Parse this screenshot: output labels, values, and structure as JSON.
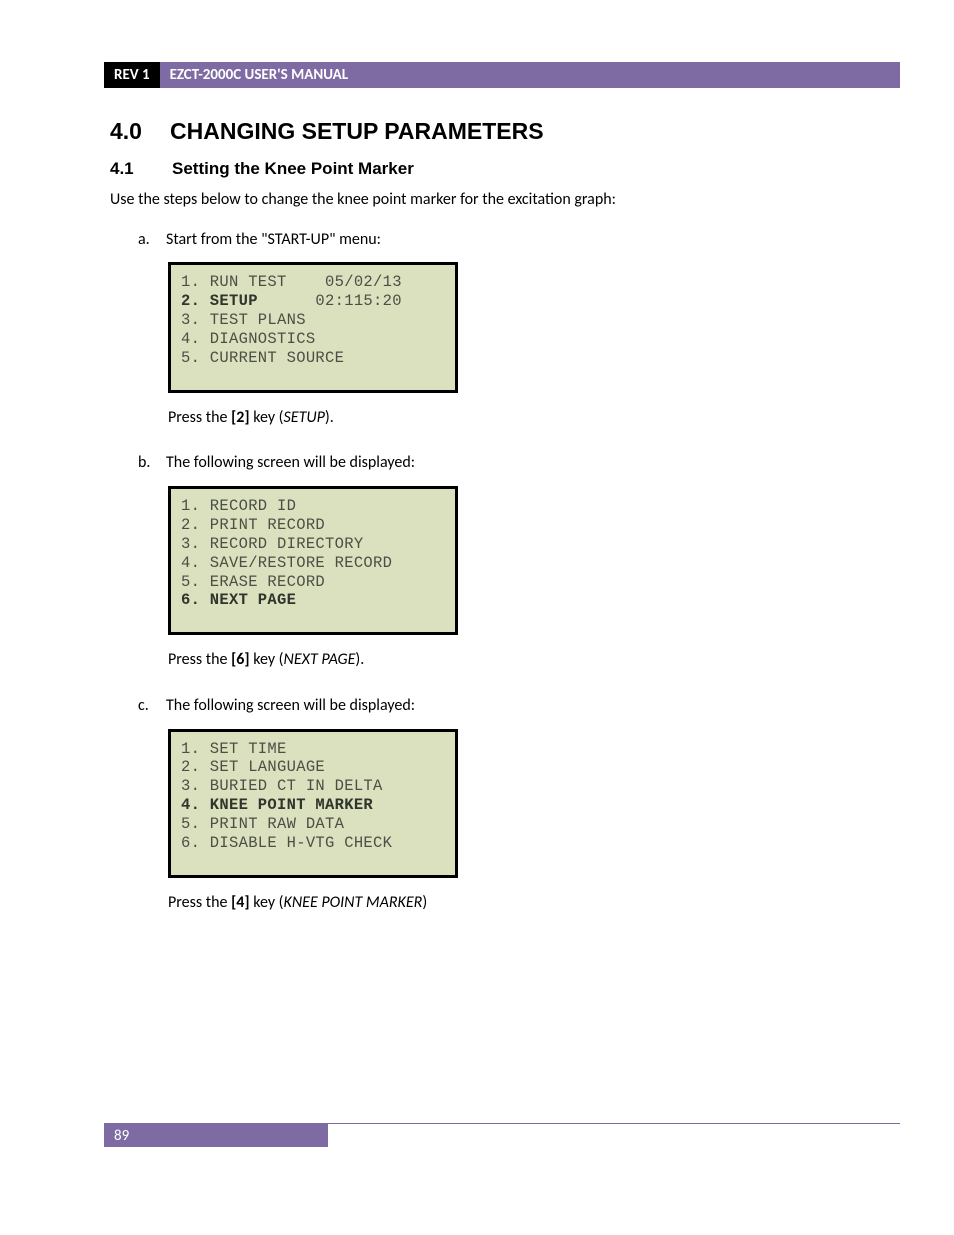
{
  "header": {
    "rev": "REV 1",
    "title": "EZCT-2000C USER'S MANUAL"
  },
  "section": {
    "number": "4.0",
    "title": "CHANGING SETUP PARAMETERS"
  },
  "subsection": {
    "number": "4.1",
    "title": "Setting the Knee Point Marker"
  },
  "intro": "Use the steps below to change the knee point marker for the excitation graph:",
  "steps": {
    "a": {
      "letter": "a.",
      "text": "Start from the \"START-UP\" menu:",
      "lcd": {
        "lines": [
          {
            "text": "1. RUN TEST    05/02/13",
            "bold": false
          },
          {
            "text": "2. SETUP      02:115:20",
            "bold_prefix": "2. SETUP",
            "suffix": "      02:115:20"
          },
          {
            "text": "3. TEST PLANS",
            "bold": false
          },
          {
            "text": "4. DIAGNOSTICS",
            "bold": false
          },
          {
            "text": "5. CURRENT SOURCE",
            "bold": false
          }
        ],
        "bg_color": "#dbe0bf",
        "border_color": "#000000",
        "text_color": "#4a5044",
        "font_family": "Courier New"
      },
      "press_pre": "Press the ",
      "press_key": "[2]",
      "press_mid": " key (",
      "press_ital": "SETUP",
      "press_post": ")."
    },
    "b": {
      "letter": "b.",
      "text": "The following screen will be displayed:",
      "lcd": {
        "lines": [
          {
            "text": "1. RECORD ID",
            "bold": false
          },
          {
            "text": "2. PRINT RECORD",
            "bold": false
          },
          {
            "text": "3. RECORD DIRECTORY",
            "bold": false
          },
          {
            "text": "4. SAVE/RESTORE RECORD",
            "bold": false
          },
          {
            "text": "5. ERASE RECORD",
            "bold": false
          },
          {
            "text": "6. NEXT PAGE",
            "bold": true
          }
        ],
        "bg_color": "#dbe0bf",
        "border_color": "#000000",
        "text_color": "#4a5044",
        "font_family": "Courier New"
      },
      "press_pre": "Press the ",
      "press_key": "[6]",
      "press_mid": " key (",
      "press_ital": "NEXT PAGE",
      "press_post": ")."
    },
    "c": {
      "letter": "c.",
      "text": "The following screen will be displayed:",
      "lcd": {
        "lines": [
          {
            "text": "1. SET TIME",
            "bold": false
          },
          {
            "text": "2. SET LANGUAGE",
            "bold": false
          },
          {
            "text": "3. BURIED CT IN DELTA",
            "bold": false
          },
          {
            "text": "4. KNEE POINT MARKER",
            "bold": true
          },
          {
            "text": "5. PRINT RAW DATA",
            "bold": false
          },
          {
            "text": "6. DISABLE H-VTG CHECK",
            "bold": false
          }
        ],
        "bg_color": "#dbe0bf",
        "border_color": "#000000",
        "text_color": "#4a5044",
        "font_family": "Courier New"
      },
      "press_pre": "Press the ",
      "press_key": "[4]",
      "press_mid": " key (",
      "press_ital": "KNEE POINT MARKER",
      "press_post": ")"
    }
  },
  "footer": {
    "page": "89"
  },
  "colors": {
    "header_bg": "#7e6ba4",
    "page_bg": "#ffffff",
    "lcd_bg": "#dbe0bf"
  }
}
